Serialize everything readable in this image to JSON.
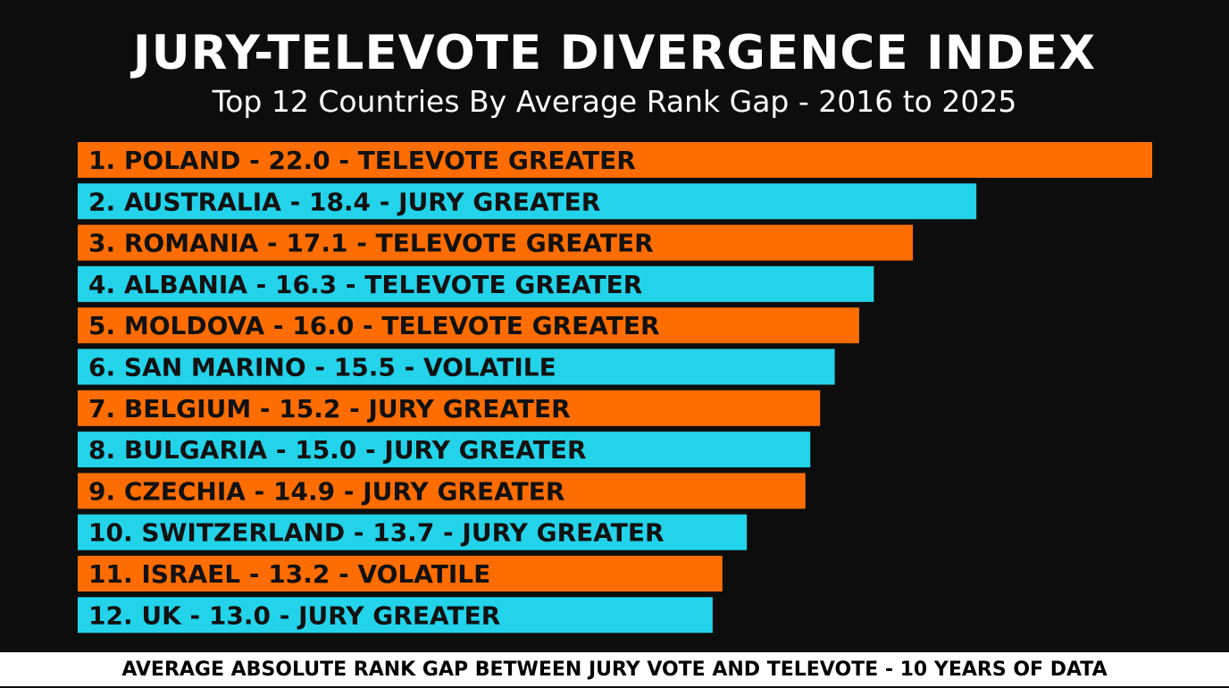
{
  "colors": {
    "background": "#0d0d0d",
    "orange": "#ff6d00",
    "cyan": "#22d3ea",
    "title": "#ffffff",
    "label": "#111111",
    "footer_bg": "#ffffff",
    "footer_text": "#000000"
  },
  "footer": "AVERAGE ABSOLUTE RANK GAP BETWEEN JURY VOTE AND TELEVOTE - 10 YEARS OF DATA",
  "chart_data": {
    "type": "bar",
    "orientation": "horizontal",
    "title": "JURY-TELEVOTE DIVERGENCE INDEX",
    "subtitle": "Top 12 Countries By Average Rank Gap - 2016 to 2025",
    "xlim": [
      0,
      22.0
    ],
    "grid": false,
    "categories": [
      "POLAND",
      "AUSTRALIA",
      "ROMANIA",
      "ALBANIA",
      "MOLDOVA",
      "SAN MARINO",
      "BELGIUM",
      "BULGARIA",
      "CZECHIA",
      "SWITZERLAND",
      "ISRAEL",
      "UK"
    ],
    "values": [
      22.0,
      18.4,
      17.1,
      16.3,
      16.0,
      15.5,
      15.2,
      15.0,
      14.9,
      13.7,
      13.2,
      13.0
    ],
    "labels": [
      "1. POLAND - 22.0 - TELEVOTE GREATER",
      "2. AUSTRALIA - 18.4 - JURY GREATER",
      "3. ROMANIA - 17.1 - TELEVOTE GREATER",
      "4. ALBANIA - 16.3 - TELEVOTE GREATER",
      "5. MOLDOVA - 16.0 - TELEVOTE GREATER",
      "6. SAN MARINO - 15.5 - VOLATILE",
      "7. BELGIUM - 15.2 - JURY GREATER",
      "8. BULGARIA - 15.0 - JURY GREATER",
      "9. CZECHIA - 14.9 - JURY GREATER",
      "10. SWITZERLAND - 13.7 - JURY GREATER",
      "11. ISRAEL - 13.2 - VOLATILE",
      "12. UK - 13.0 - JURY GREATER"
    ],
    "bar_colors": [
      "#ff6d00",
      "#22d3ea",
      "#ff6d00",
      "#22d3ea",
      "#ff6d00",
      "#22d3ea",
      "#ff6d00",
      "#22d3ea",
      "#ff6d00",
      "#22d3ea",
      "#ff6d00",
      "#22d3ea"
    ]
  }
}
